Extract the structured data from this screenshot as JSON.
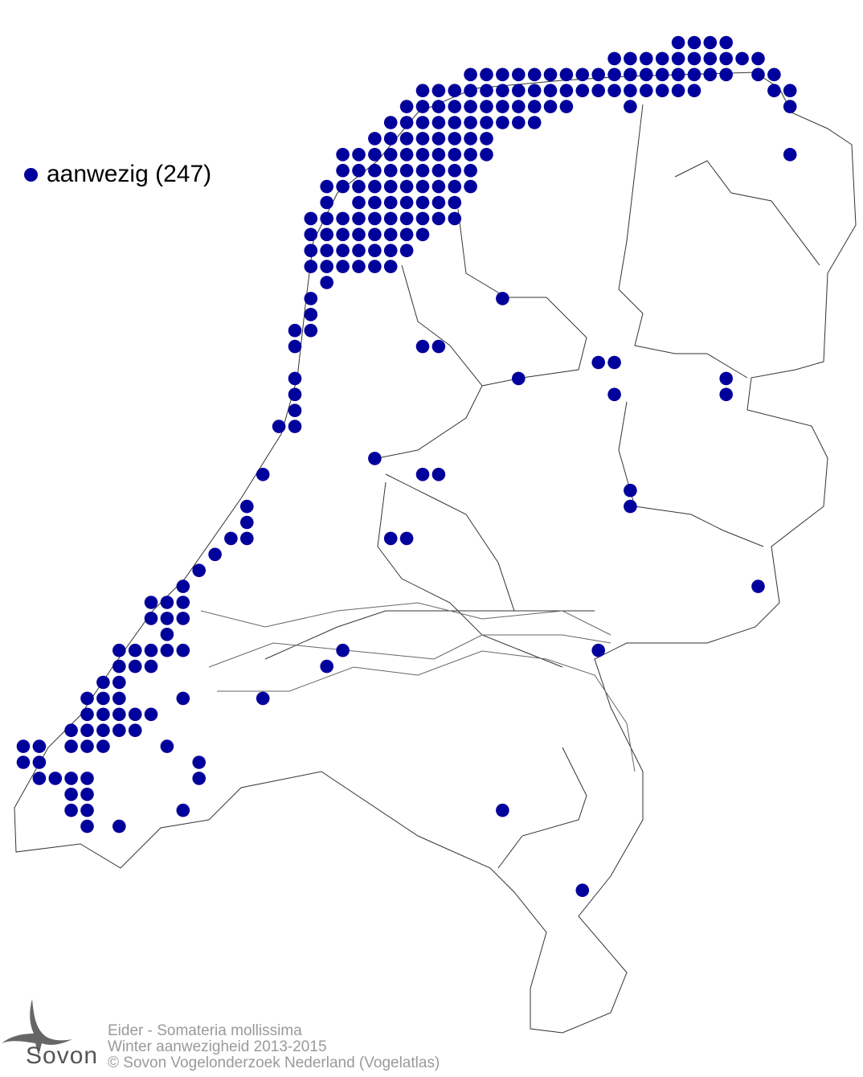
{
  "legend": {
    "label": "aanwezig (247)",
    "dot_color": "#00009c"
  },
  "caption": {
    "line1": "Eider - Somateria mollissima",
    "line2": "Winter aanwezigheid 2013-2015",
    "line3": "© Sovon Vogelonderzoek Nederland (Vogelatlas)"
  },
  "logo": {
    "text": "Sovon"
  },
  "colors": {
    "presence": "#00009c",
    "border": "#333333",
    "caption": "#9a9a9a"
  }
}
